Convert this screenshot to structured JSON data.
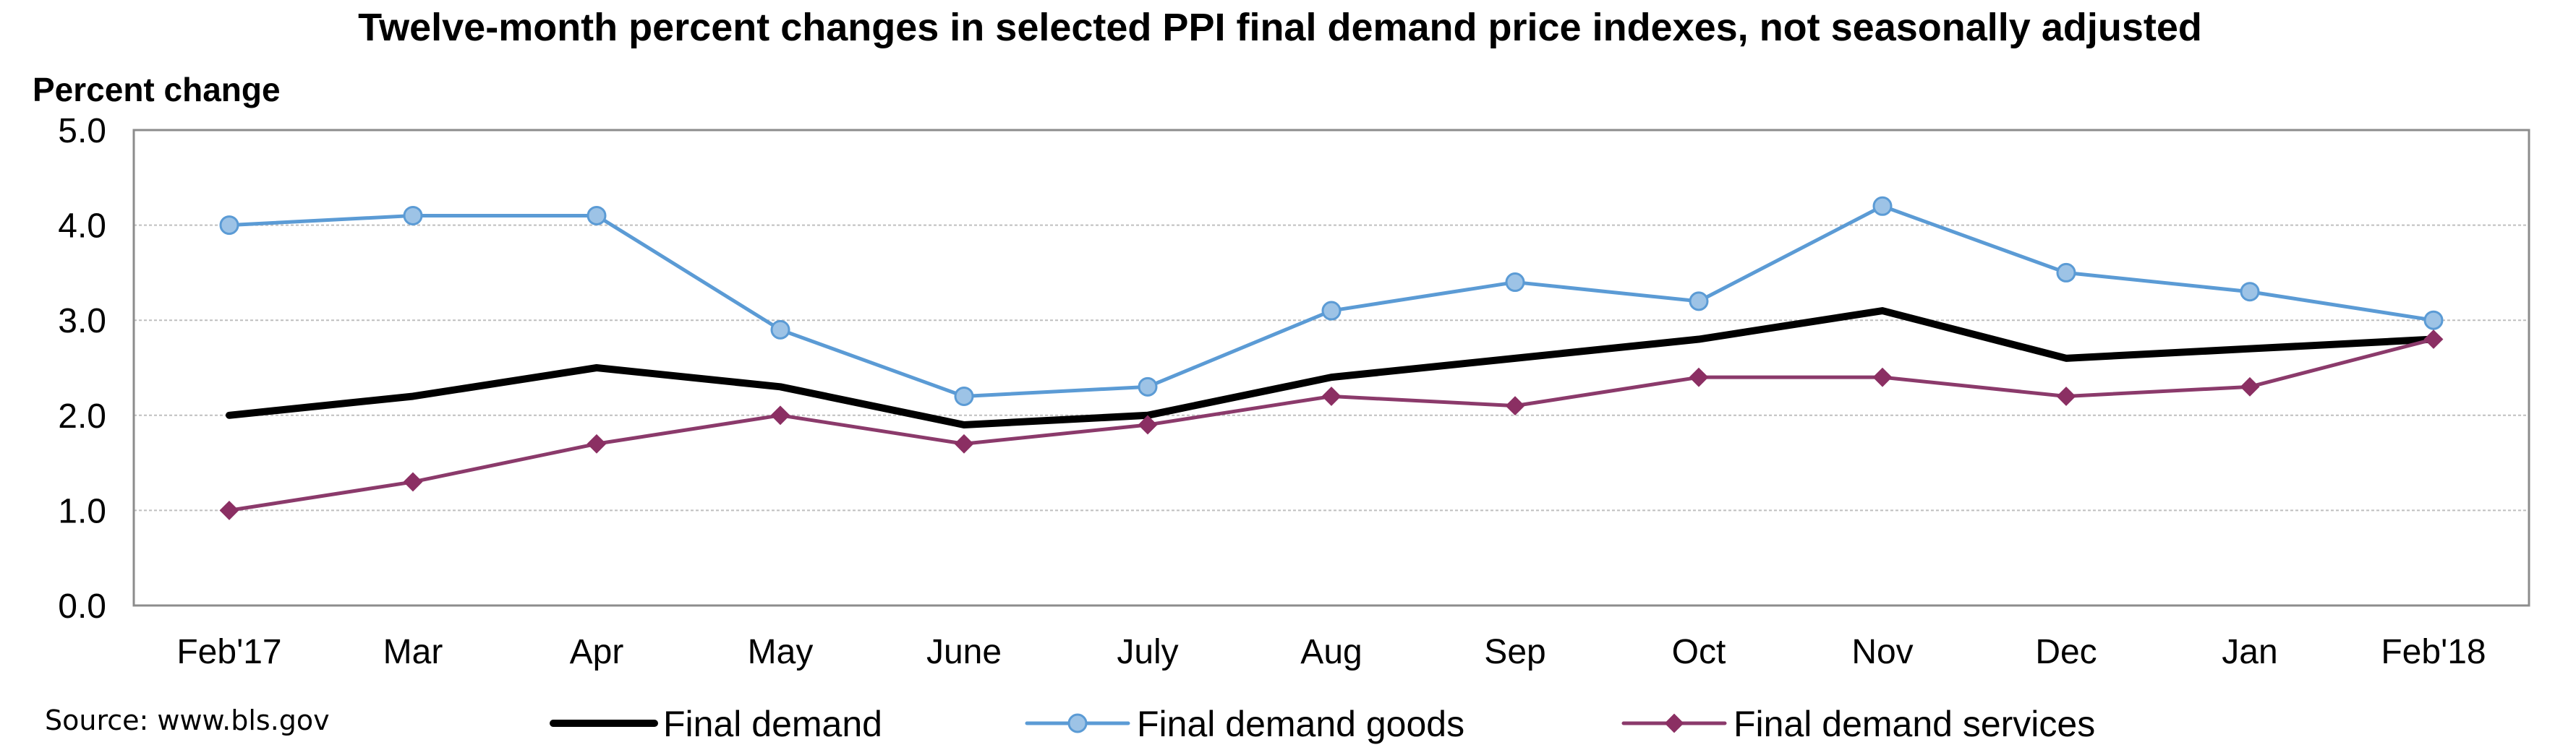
{
  "chart_data": {
    "type": "line",
    "title": "Twelve-month percent changes in selected PPI final demand price indexes, not seasonally adjusted",
    "ylabel": "Percent change",
    "xlabel": "",
    "source": "Source: www.bls.gov",
    "categories": [
      "Feb'17",
      "Mar",
      "Apr",
      "May",
      "June",
      "July",
      "Aug",
      "Sep",
      "Oct",
      "Nov",
      "Dec",
      "Jan",
      "Feb'18"
    ],
    "ylim": [
      0,
      5
    ],
    "yticks": [
      "0.0",
      "1.0",
      "2.0",
      "3.0",
      "4.0",
      "5.0"
    ],
    "grid": true,
    "legend_position": "bottom",
    "series": [
      {
        "name": "Final demand",
        "color": "#000000",
        "marker": "none",
        "values": [
          2.0,
          2.2,
          2.5,
          2.3,
          1.9,
          2.0,
          2.4,
          2.6,
          2.8,
          3.1,
          2.6,
          2.7,
          2.8
        ]
      },
      {
        "name": "Final demand goods",
        "color": "#5b9bd5",
        "marker_fill": "#9dc3e6",
        "marker": "circle",
        "values": [
          4.0,
          4.1,
          4.1,
          2.9,
          2.2,
          2.3,
          3.1,
          3.4,
          3.2,
          4.2,
          3.5,
          3.3,
          3.0
        ]
      },
      {
        "name": "Final demand services",
        "color": "#8b3a6b",
        "marker_fill": "#8b2f63",
        "marker": "diamond",
        "values": [
          1.0,
          1.3,
          1.7,
          2.0,
          1.7,
          1.9,
          2.2,
          2.1,
          2.4,
          2.4,
          2.2,
          2.3,
          2.8
        ]
      }
    ]
  }
}
